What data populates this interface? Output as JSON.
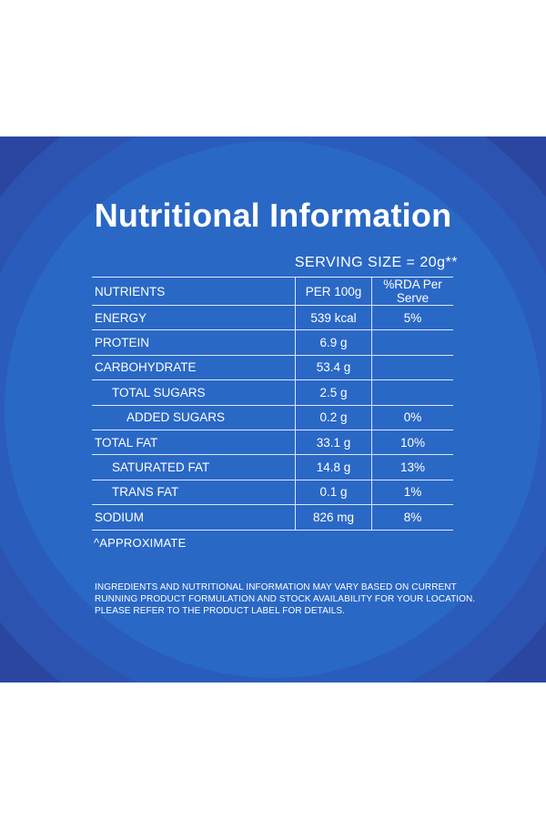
{
  "title": "Nutritional Information",
  "serving_size": "SERVING SIZE = 20g**",
  "table": {
    "headers": [
      "NUTRIENTS",
      "PER 100g",
      "%RDA Per Serve"
    ],
    "rows": [
      {
        "nutrient": "ENERGY",
        "per100g": "539 kcal",
        "rda": "5%"
      },
      {
        "nutrient": "PROTEIN",
        "per100g": "6.9 g",
        "rda": ""
      },
      {
        "nutrient": "CARBOHYDRATE",
        "per100g": "53.4 g",
        "rda": ""
      },
      {
        "nutrient": "TOTAL SUGARS",
        "per100g": "2.5 g",
        "rda": ""
      },
      {
        "nutrient": "ADDED SUGARS",
        "per100g": "0.2 g",
        "rda": "0%"
      },
      {
        "nutrient": "TOTAL FAT",
        "per100g": "33.1 g",
        "rda": "10%"
      },
      {
        "nutrient": "SATURATED FAT",
        "per100g": "14.8 g",
        "rda": "13%"
      },
      {
        "nutrient": "TRANS FAT",
        "per100g": "0.1 g",
        "rda": "1%"
      },
      {
        "nutrient": "SODIUM",
        "per100g": "826 mg",
        "rda": "8%"
      }
    ]
  },
  "approx_note": "^APPROXIMATE",
  "disclaimer": [
    "INGREDIENTS AND NUTRITIONAL INFORMATION MAY VARY BASED ON CURRENT",
    "RUNNING PRODUCT FORMULATION AND STOCK AVAILABILITY FOR YOUR LOCATION.",
    "PLEASE REFER TO THE PRODUCT LABEL FOR DETAILS."
  ],
  "colors": {
    "background_outer": "#2b46a0",
    "background_inner": "#2a68c6",
    "text": "#ffffff"
  }
}
